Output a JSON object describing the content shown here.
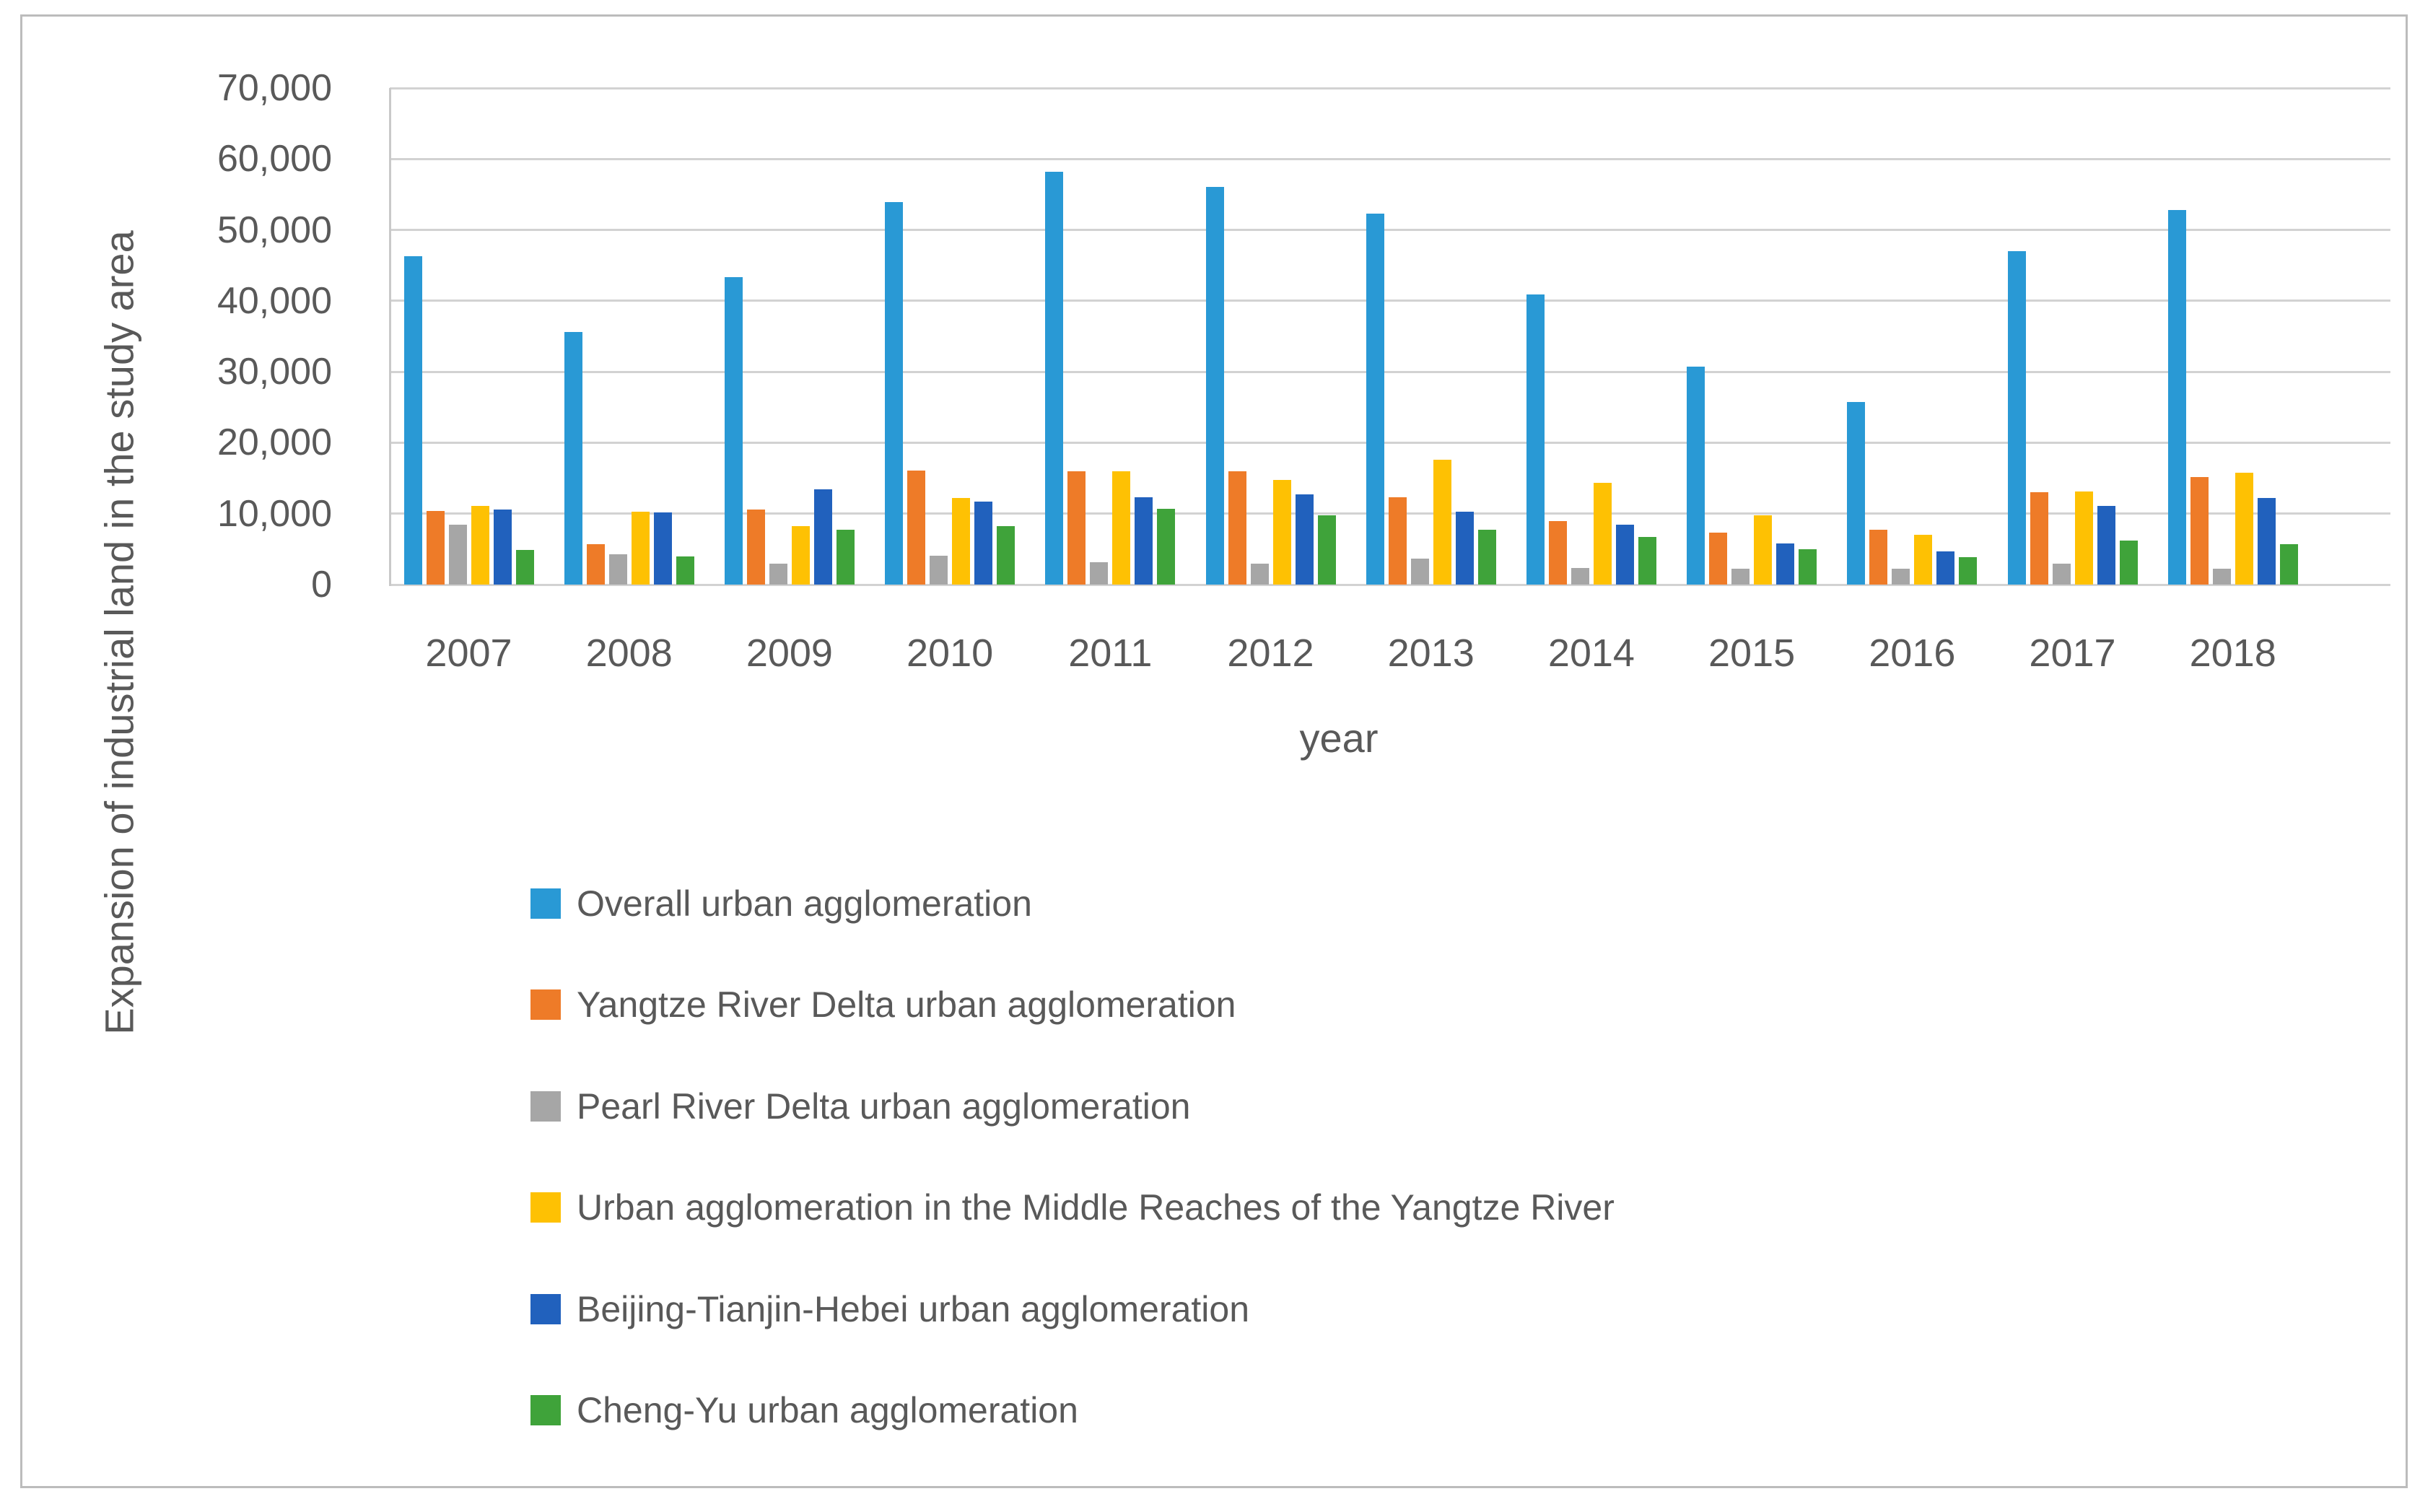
{
  "figure": {
    "background": "#ffffff",
    "border_color": "#bcbcbc",
    "gridline_color": "#d2d2d2",
    "text_color": "#595959"
  },
  "chart_data": {
    "type": "bar",
    "title": "",
    "xlabel": "year",
    "ylabel": "Expansion of industrial land in the study area",
    "ylim": [
      0,
      70000
    ],
    "y_tick_step": 10000,
    "y_tick_labels": [
      "0",
      "10,000",
      "20,000",
      "30,000",
      "40,000",
      "50,000",
      "60,000",
      "70,000"
    ],
    "grid": true,
    "legend_position": "bottom-left",
    "categories": [
      "2007",
      "2008",
      "2009",
      "2010",
      "2011",
      "2012",
      "2013",
      "2014",
      "2015",
      "2016",
      "2017",
      "2018"
    ],
    "series": [
      {
        "name": "Overall urban agglomeration",
        "color": "#2999d5",
        "values": [
          46300,
          35600,
          43300,
          53900,
          58200,
          56100,
          52300,
          40900,
          30700,
          25700,
          47000,
          52800
        ]
      },
      {
        "name": "Yangtze River Delta urban agglomeration",
        "color": "#ee7b28",
        "values": [
          10400,
          5700,
          10600,
          16100,
          16000,
          16000,
          12300,
          9000,
          7300,
          7700,
          13000,
          15200
        ]
      },
      {
        "name": "Pearl River Delta urban agglomeration",
        "color": "#a6a6a6",
        "values": [
          8400,
          4300,
          2900,
          4100,
          3200,
          2900,
          3700,
          2300,
          2200,
          2200,
          2900,
          2200
        ]
      },
      {
        "name": "Urban agglomeration in the Middle Reaches of the Yangtze River",
        "color": "#fec103",
        "values": [
          11100,
          10300,
          8200,
          12200,
          16000,
          14800,
          17600,
          14300,
          9800,
          7000,
          13100,
          15800
        ]
      },
      {
        "name": "Beijing-Tianjin-Hebei urban agglomeration",
        "color": "#2161bd",
        "values": [
          10600,
          10200,
          13400,
          11700,
          12300,
          12700,
          10300,
          8400,
          5800,
          4700,
          11100,
          12200
        ]
      },
      {
        "name": "Cheng-Yu urban agglomeration",
        "color": "#3fa33a",
        "values": [
          4900,
          4000,
          7700,
          8200,
          10700,
          9800,
          7700,
          6700,
          5000,
          3900,
          6200,
          5700
        ]
      }
    ]
  }
}
